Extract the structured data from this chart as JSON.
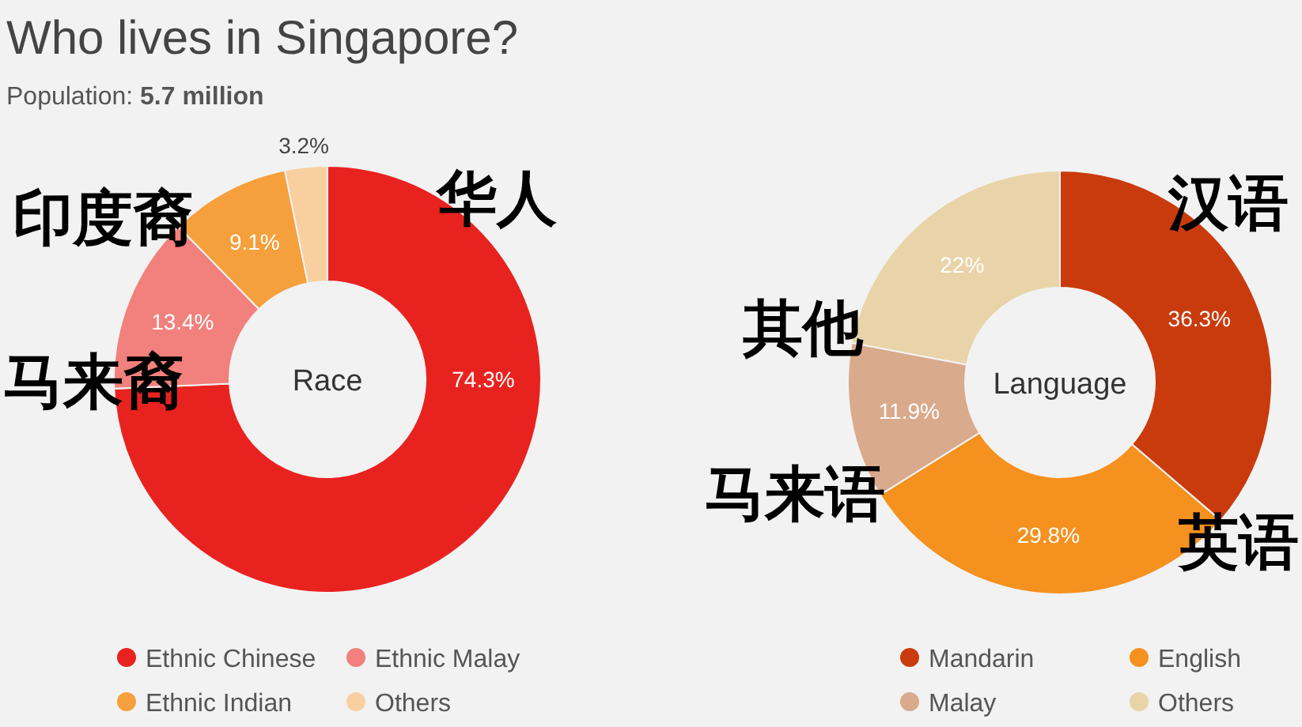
{
  "chart_data": [
    {
      "type": "donut",
      "title": "Who lives in Singapore?",
      "subtitle": "Population: 5.7 million",
      "categories": [
        "Ethnic Chinese",
        "Ethnic Malay",
        "Ethnic Indian",
        "Others"
      ],
      "values": [
        74.3,
        13.4,
        9.1,
        3.2
      ],
      "colors": [
        "#e8231f",
        "#f2807c",
        "#f5a03c",
        "#f9cfa0"
      ],
      "value_labels": [
        "74.3%",
        "13.4%",
        "9.1%",
        "3.2%"
      ],
      "legend": "bottom",
      "annotations": [
        "Race",
        {
          "text": "华人",
          "x": "Ethnic Chinese"
        },
        {
          "text": "马来裔",
          "x": "Ethnic Malay"
        },
        {
          "text": "印度裔",
          "x": "Ethnic Indian"
        }
      ]
    },
    {
      "type": "donut",
      "categories": [
        "Mandarin",
        "English",
        "Malay",
        "Others"
      ],
      "values": [
        36.3,
        29.8,
        11.9,
        22
      ],
      "colors": [
        "#c93b0d",
        "#f5911f",
        "#d9aa8b",
        "#e9d4a9"
      ],
      "value_labels": [
        "36.3%",
        "29.8%",
        "11.9%",
        "22%"
      ],
      "legend": "bottom",
      "annotations": [
        "Language",
        {
          "text": "汉语",
          "x": "Mandarin"
        },
        {
          "text": "英语",
          "x": "English"
        },
        {
          "text": "马来语",
          "x": "Malay"
        },
        {
          "text": "其他",
          "x": "Others"
        }
      ]
    }
  ]
}
